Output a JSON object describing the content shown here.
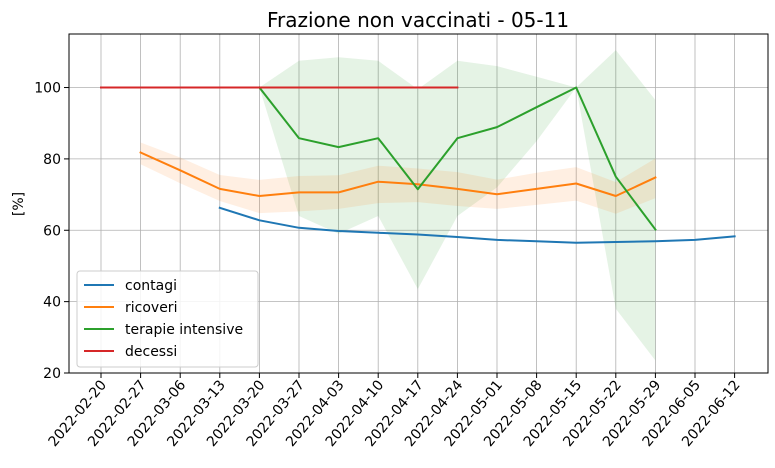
{
  "chart_data": {
    "type": "line",
    "title": "Frazione non vaccinati - 05-11",
    "ylabel": "[%]",
    "xlabel": "",
    "ylim": [
      20,
      115
    ],
    "yticks": [
      20,
      40,
      60,
      80,
      100
    ],
    "grid": true,
    "legend_position": "bottom-left",
    "categories": [
      "2022-02-20",
      "2022-02-27",
      "2022-03-06",
      "2022-03-13",
      "2022-03-20",
      "2022-03-27",
      "2022-04-03",
      "2022-04-10",
      "2022-04-17",
      "2022-04-24",
      "2022-05-01",
      "2022-05-08",
      "2022-05-15",
      "2022-05-22",
      "2022-05-29",
      "2022-06-05",
      "2022-06-12"
    ],
    "series": [
      {
        "name": "contagi",
        "color": "#1f77b4",
        "values": [
          null,
          null,
          null,
          66.3,
          62.8,
          60.7,
          59.8,
          59.3,
          58.8,
          58.1,
          57.3,
          56.9,
          56.5,
          56.7,
          56.9,
          57.3,
          58.3
        ],
        "band_lower": null,
        "band_upper": null
      },
      {
        "name": "ricoveri",
        "color": "#ff7f0e",
        "values": [
          null,
          81.8,
          76.8,
          71.6,
          69.6,
          70.6,
          70.6,
          73.6,
          72.9,
          71.6,
          70.1,
          71.6,
          73.1,
          69.6,
          74.8,
          null,
          null
        ],
        "band_lower": [
          null,
          78.5,
          73.2,
          68.2,
          64.8,
          65.3,
          66.0,
          67.6,
          67.9,
          66.8,
          66.0,
          67.1,
          68.3,
          64.6,
          69.0,
          null,
          null
        ],
        "band_upper": [
          null,
          84.6,
          80.4,
          75.5,
          74.1,
          75.2,
          75.4,
          78.1,
          77.3,
          76.3,
          74.2,
          76.1,
          77.7,
          73.5,
          80.1,
          null,
          null
        ]
      },
      {
        "name": "terapie intensive",
        "color": "#2ca02c",
        "values": [
          null,
          null,
          null,
          null,
          100,
          85.8,
          83.3,
          85.8,
          71.5,
          85.8,
          88.9,
          94.5,
          100,
          75.0,
          60.2,
          null,
          null
        ],
        "band_lower": [
          null,
          null,
          null,
          null,
          100,
          64.0,
          59.0,
          64.0,
          43.5,
          64.0,
          72.0,
          85.0,
          100,
          38.0,
          23.5,
          null,
          null
        ],
        "band_upper": [
          null,
          null,
          null,
          null,
          100,
          107.5,
          108.5,
          107.5,
          99.5,
          107.5,
          106.0,
          103.0,
          100,
          110.5,
          96.5,
          null,
          null
        ]
      },
      {
        "name": "decessi",
        "color": "#d62728",
        "values": [
          100,
          100,
          100,
          100,
          100,
          100,
          100,
          100,
          100,
          100,
          null,
          null,
          null,
          null,
          null,
          null,
          null
        ],
        "band_lower": null,
        "band_upper": null
      }
    ]
  }
}
